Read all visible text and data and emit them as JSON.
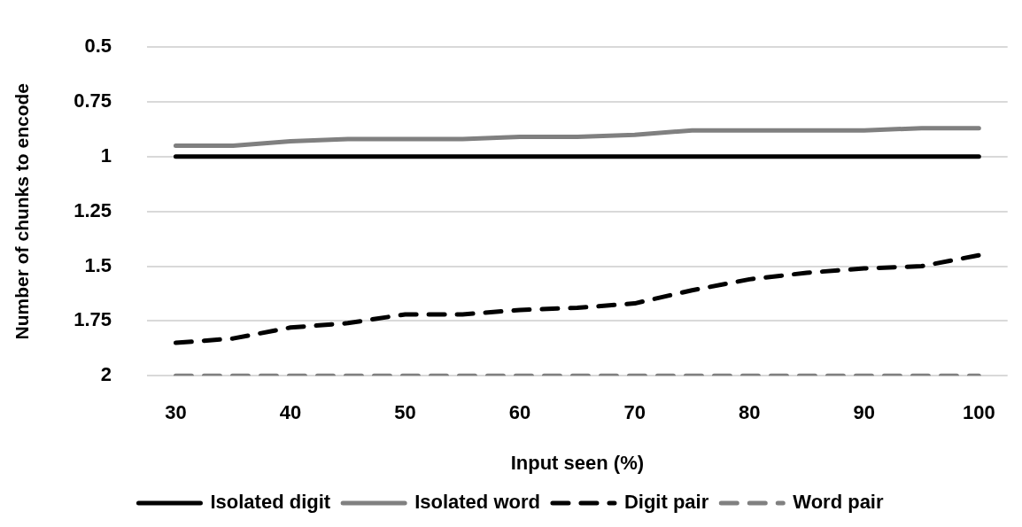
{
  "chart_data": {
    "type": "line",
    "xlabel": "Input seen (%)",
    "ylabel": "Number of chunks to encode",
    "categories": [
      "30",
      null,
      "40",
      null,
      "50",
      null,
      "60",
      null,
      "70",
      null,
      "80",
      null,
      "90",
      null,
      "100"
    ],
    "ylim": [
      2,
      0.5
    ],
    "yticks": [
      0.5,
      0.75,
      1,
      1.25,
      1.5,
      1.75,
      2
    ],
    "grid": "y",
    "legend": "bottom",
    "marker": "none",
    "series": [
      {
        "name": "Isolated digit",
        "color": "#000000",
        "line_style": "solid",
        "values": [
          1,
          1,
          1,
          1,
          1,
          1,
          1,
          1,
          1,
          1,
          1,
          1,
          1,
          1,
          1
        ]
      },
      {
        "name": "Isolated word",
        "color": "#808080",
        "line_style": "solid",
        "values": [
          0.95,
          0.95,
          0.93,
          0.92,
          0.92,
          0.92,
          0.91,
          0.91,
          0.9,
          0.88,
          0.88,
          0.88,
          0.88,
          0.87,
          0.87
        ]
      },
      {
        "name": "Digit pair",
        "color": "#000000",
        "line_style": "dashed",
        "values": [
          1.85,
          1.83,
          1.78,
          1.76,
          1.72,
          1.72,
          1.7,
          1.69,
          1.67,
          1.61,
          1.56,
          1.53,
          1.51,
          1.5,
          1.45
        ]
      },
      {
        "name": "Word pair",
        "color": "#808080",
        "line_style": "dashed",
        "values": [
          2,
          2,
          2,
          2,
          2,
          2,
          2,
          2,
          2,
          2,
          2,
          2,
          2,
          2,
          2
        ]
      }
    ]
  }
}
